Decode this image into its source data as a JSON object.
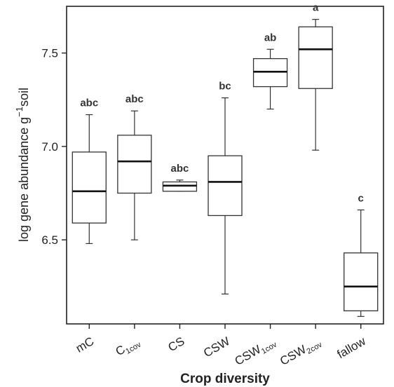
{
  "chart_data": {
    "type": "boxplot",
    "xlabel": "Crop diversity",
    "ylabel": "log gene abundance g⁻¹soil",
    "ylim": [
      6.05,
      7.75
    ],
    "yticks": [
      6.5,
      7.0,
      7.5
    ],
    "ytick_labels": [
      "6.5",
      "7.0",
      "7.5"
    ],
    "grid": false,
    "categories": [
      {
        "label": "mC",
        "sub": "",
        "min": 6.48,
        "q1": 6.59,
        "median": 6.76,
        "q3": 6.97,
        "max": 7.17,
        "sig": "abc"
      },
      {
        "label": "C",
        "sub": "1cov",
        "min": 6.5,
        "q1": 6.75,
        "median": 6.92,
        "q3": 7.06,
        "max": 7.19,
        "sig": "abc"
      },
      {
        "label": "CS",
        "sub": "",
        "min": 6.76,
        "q1": 6.76,
        "median": 6.79,
        "q3": 6.81,
        "max": 6.82,
        "sig": "abc"
      },
      {
        "label": "CSW",
        "sub": "",
        "min": 6.21,
        "q1": 6.63,
        "median": 6.81,
        "q3": 6.95,
        "max": 7.26,
        "sig": "bc"
      },
      {
        "label": "CSW",
        "sub": "1cov",
        "min": 7.2,
        "q1": 7.32,
        "median": 7.4,
        "q3": 7.47,
        "max": 7.52,
        "sig": "ab"
      },
      {
        "label": "CSW",
        "sub": "2cov",
        "min": 6.98,
        "q1": 7.31,
        "median": 7.52,
        "q3": 7.64,
        "max": 7.68,
        "sig": "a"
      },
      {
        "label": "fallow",
        "sub": "",
        "min": 6.09,
        "q1": 6.12,
        "median": 6.25,
        "q3": 6.43,
        "max": 6.66,
        "sig": "c"
      }
    ]
  }
}
